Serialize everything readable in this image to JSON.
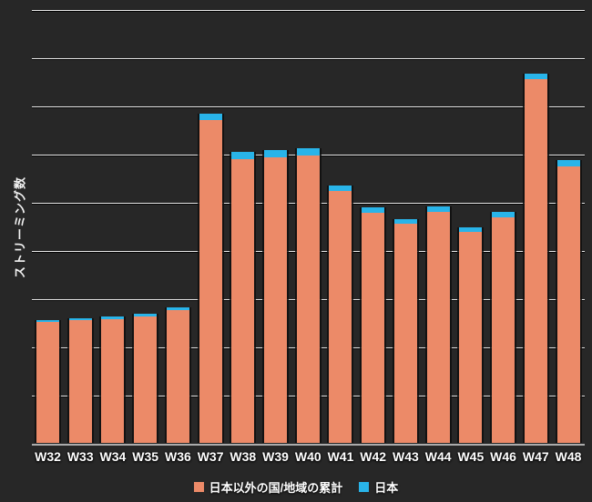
{
  "colors": {
    "background": "#272727",
    "bar_other": "#EC8A68",
    "bar_japan": "#29B4E9",
    "gridline": "#E8E8E8",
    "baseline": "#ABABAB",
    "text": "#FFFFFF"
  },
  "y_axis": {
    "label": "ストリーミング数"
  },
  "legend": {
    "items": [
      {
        "label": "日本以外の国/地域の累計",
        "color": "#EC8A68"
      },
      {
        "label": "日本",
        "color": "#29B4E9"
      }
    ]
  },
  "chart_data": {
    "type": "bar",
    "stacked": true,
    "title": "",
    "xlabel": "",
    "ylabel": "ストリーミング数",
    "categories": [
      "W32",
      "W33",
      "W34",
      "W35",
      "W36",
      "W37",
      "W38",
      "W39",
      "W40",
      "W41",
      "W42",
      "W43",
      "W44",
      "W45",
      "W46",
      "W47",
      "W48"
    ],
    "series": [
      {
        "name": "日本以外の国/地域の累計",
        "color": "#EC8A68",
        "values": [
          2.51,
          2.54,
          2.57,
          2.63,
          2.75,
          6.7,
          5.89,
          5.93,
          5.96,
          5.23,
          4.78,
          4.55,
          4.8,
          4.38,
          4.68,
          7.54,
          5.74
        ]
      },
      {
        "name": "日本",
        "color": "#29B4E9",
        "values": [
          0.04,
          0.04,
          0.05,
          0.05,
          0.06,
          0.13,
          0.15,
          0.15,
          0.15,
          0.11,
          0.11,
          0.09,
          0.11,
          0.09,
          0.11,
          0.12,
          0.13
        ]
      }
    ],
    "ylim": [
      0,
      9
    ],
    "y_tick_labels": [],
    "gridlines": true,
    "gridline_count": 10,
    "legend_position": "bottom"
  }
}
